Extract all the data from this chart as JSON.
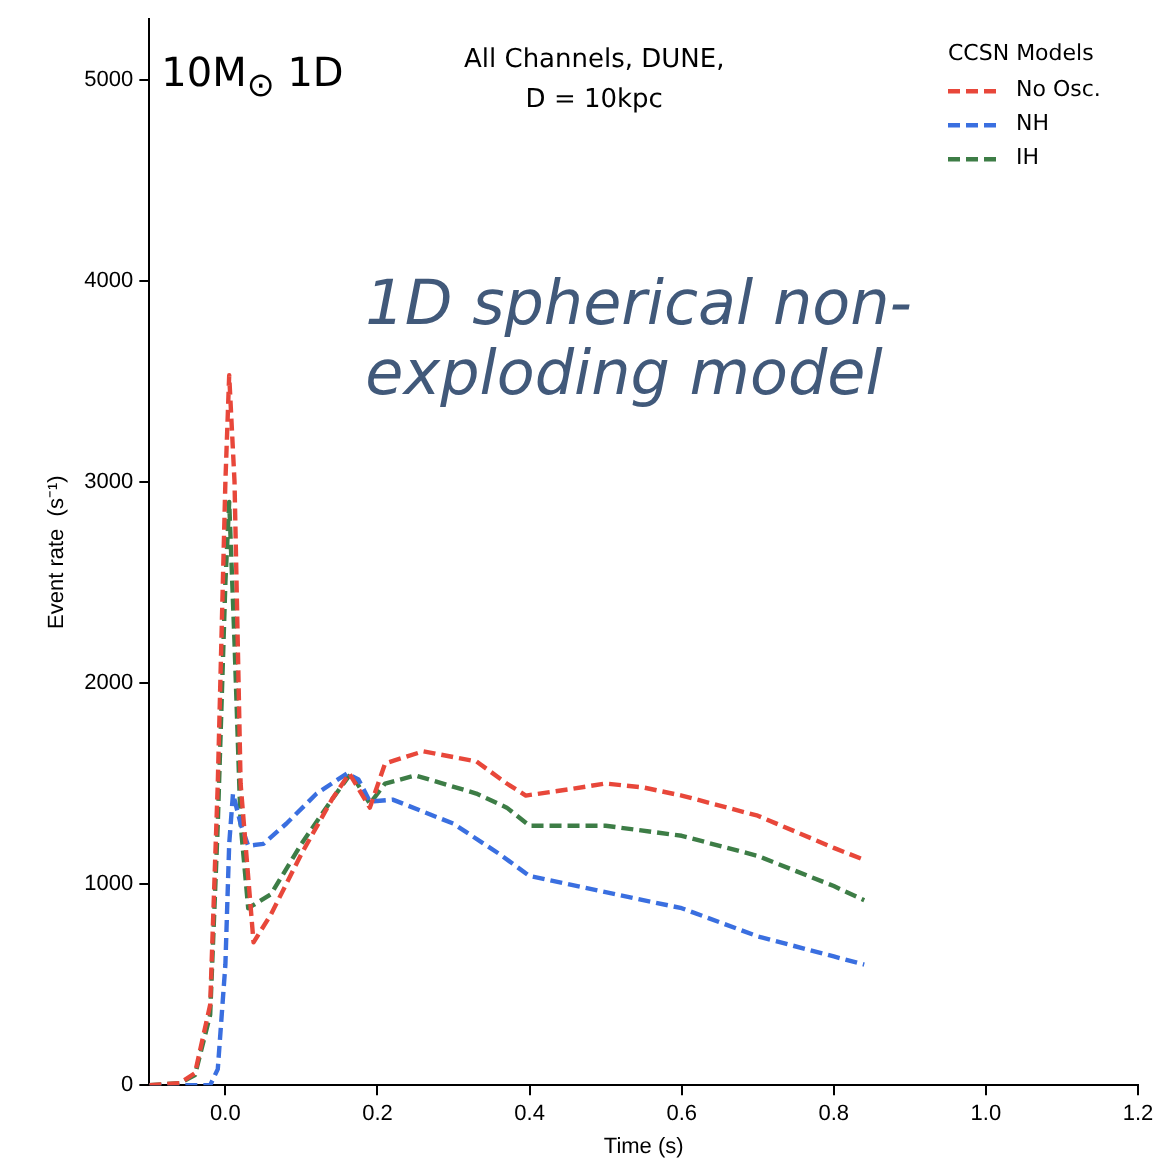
{
  "chart_data": {
    "type": "line",
    "title": "All Channels, DUNE,",
    "subtitle": "D = 10kpc",
    "xlabel": "Time (s)",
    "ylabel": "Event rate  (s⁻¹)",
    "legend_title": "CCSN Models",
    "legend": "top right",
    "line_style": "dashed",
    "marker": "none",
    "grid": false,
    "annotations": [
      "10M$_{⊙}$ 1D",
      "1D spherical non-exploding model"
    ],
    "xlim": [
      -0.1,
      1.2
    ],
    "xticks": [
      {
        "value": 0,
        "label": "0.0"
      },
      {
        "value": 0.2,
        "label": "0.2"
      },
      {
        "value": 0.4,
        "label": "0.4"
      },
      {
        "value": 0.6,
        "label": "0.6"
      },
      {
        "value": 0.8,
        "label": "0.8"
      },
      {
        "value": 1,
        "label": "1.0"
      },
      {
        "value": 1.2,
        "label": "1.2"
      }
    ],
    "ylim": [
      0,
      5300
    ],
    "yticks": [
      0,
      1000,
      2000,
      3000,
      4000,
      5000
    ],
    "series": [
      {
        "name": "No Osc.",
        "color": "#e8473a",
        "x": [
          -0.1,
          -0.06,
          -0.04,
          -0.02,
          -0.01,
          0,
          0.005,
          0.012,
          0.02,
          0.037,
          0.06,
          0.1,
          0.14,
          0.163,
          0.19,
          0.21,
          0.26,
          0.33,
          0.37,
          0.395,
          0.45,
          0.5,
          0.55,
          0.6,
          0.7,
          0.8,
          0.84
        ],
        "values": [
          0,
          10,
          60,
          400,
          1500,
          3000,
          3530,
          3000,
          1500,
          710,
          850,
          1150,
          1420,
          1550,
          1380,
          1600,
          1660,
          1610,
          1500,
          1440,
          1470,
          1500,
          1480,
          1440,
          1340,
          1180,
          1120
        ]
      },
      {
        "name": "NH",
        "color": "#3a6fe0",
        "x": [
          -0.1,
          -0.02,
          -0.01,
          0,
          0.005,
          0.01,
          0.02,
          0.03,
          0.05,
          0.08,
          0.12,
          0.16,
          0.175,
          0.19,
          0.22,
          0.3,
          0.36,
          0.4,
          0.5,
          0.6,
          0.7,
          0.8,
          0.84
        ],
        "values": [
          0,
          0,
          80,
          600,
          1200,
          1450,
          1300,
          1190,
          1200,
          1300,
          1450,
          1550,
          1520,
          1410,
          1420,
          1300,
          1150,
          1040,
          960,
          880,
          740,
          640,
          600
        ]
      },
      {
        "name": "IH",
        "color": "#3d7d46",
        "x": [
          -0.1,
          -0.06,
          -0.04,
          -0.02,
          -0.01,
          0,
          0.005,
          0.012,
          0.02,
          0.03,
          0.06,
          0.1,
          0.14,
          0.165,
          0.19,
          0.21,
          0.25,
          0.33,
          0.37,
          0.4,
          0.5,
          0.6,
          0.7,
          0.8,
          0.84
        ],
        "values": [
          0,
          10,
          50,
          350,
          1300,
          2500,
          2900,
          2200,
          1300,
          880,
          950,
          1200,
          1420,
          1550,
          1400,
          1500,
          1540,
          1450,
          1380,
          1290,
          1290,
          1240,
          1140,
          990,
          920
        ]
      }
    ]
  }
}
